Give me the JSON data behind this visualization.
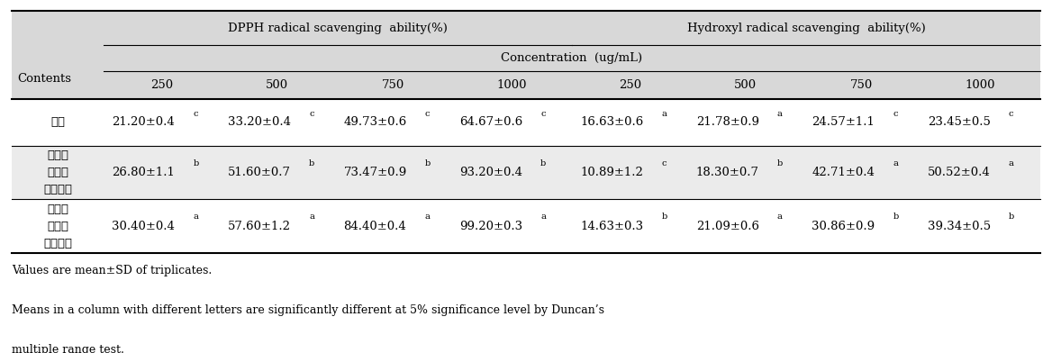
{
  "col0_rows": [
    "백미",
    "청소년\n맞춤형\n혼합잡곡",
    "고령층\n맞춤형\n혼합잡곡"
  ],
  "data_cells": [
    [
      "21.20±0.4c",
      "33.20±0.4c",
      "49.73±0.6c",
      "64.67±0.6c",
      "16.63±0.6a",
      "21.78±0.9a",
      "24.57±1.1c",
      "23.45±0.5c"
    ],
    [
      "26.80±1.1b",
      "51.60±0.7b",
      "73.47±0.9b",
      "93.20±0.4b",
      "10.89±1.2c",
      "18.30±0.7b",
      "42.71±0.4a",
      "50.52±0.4a"
    ],
    [
      "30.40±0.4a",
      "57.60±1.2a",
      "84.40±0.4a",
      "99.20±0.3a",
      "14.63±0.3b",
      "21.09±0.6a",
      "30.86±0.9b",
      "39.34±0.5b"
    ]
  ],
  "conc_labels": [
    "250",
    "500",
    "750",
    "1000",
    "250",
    "500",
    "750",
    "1000"
  ],
  "header_bg": "#d8d8d8",
  "white": "#ffffff",
  "footnote1": "Values are mean±SD of triplicates.",
  "footnote2": "Means in a column with different letters are significantly different at 5% significance level by Duncan’s",
  "footnote3": "multiple range test.",
  "font_size": 9.5,
  "header_font_size": 9.5
}
